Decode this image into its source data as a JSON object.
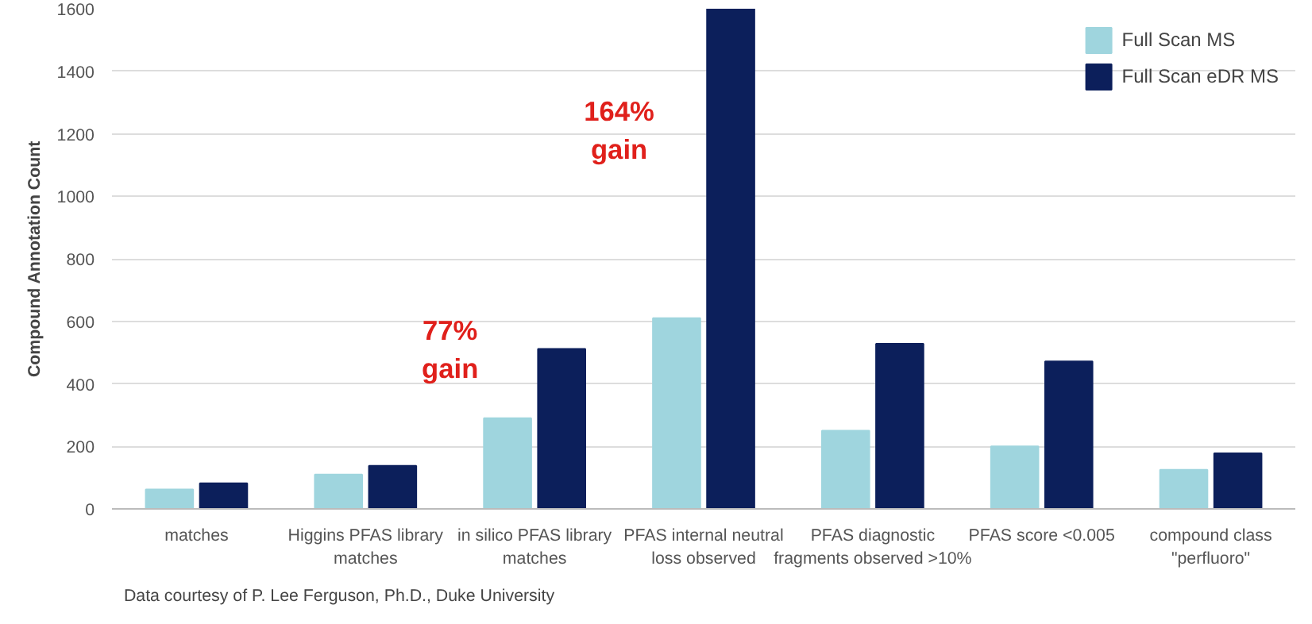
{
  "chart_data": {
    "type": "bar",
    "ylabel": "Compound Annotation Count",
    "categories": [
      "matches",
      "Higgins PFAS library matches",
      "in silico PFAS library matches",
      "PFAS internal neutral loss observed",
      "PFAS diagnostic fragments observed >10%",
      "PFAS score <0.005",
      "compound class \"perfluoro\""
    ],
    "series": [
      {
        "name": "Full Scan MS",
        "color": "#9fd5de",
        "values": [
          62,
          110,
          290,
          610,
          250,
          200,
          125
        ]
      },
      {
        "name": "Full Scan eDR MS",
        "color": "#0c1f5b",
        "values": [
          82,
          138,
          512,
          1600,
          528,
          472,
          178
        ]
      }
    ],
    "ylim": [
      0,
      1600
    ],
    "yticks": [
      0,
      200,
      400,
      600,
      800,
      1000,
      1200,
      1400,
      1600
    ],
    "grid": "y",
    "legend": "top right",
    "annotations": [
      {
        "text": "77% gain",
        "x": "in silico PFAS library matches",
        "y": 400
      },
      {
        "text": "164% gain",
        "x": "PFAS internal neutral loss observed",
        "y": 1100
      },
      "Data courtesy of P. Lee Ferguson, Ph.D., Duke University"
    ]
  }
}
